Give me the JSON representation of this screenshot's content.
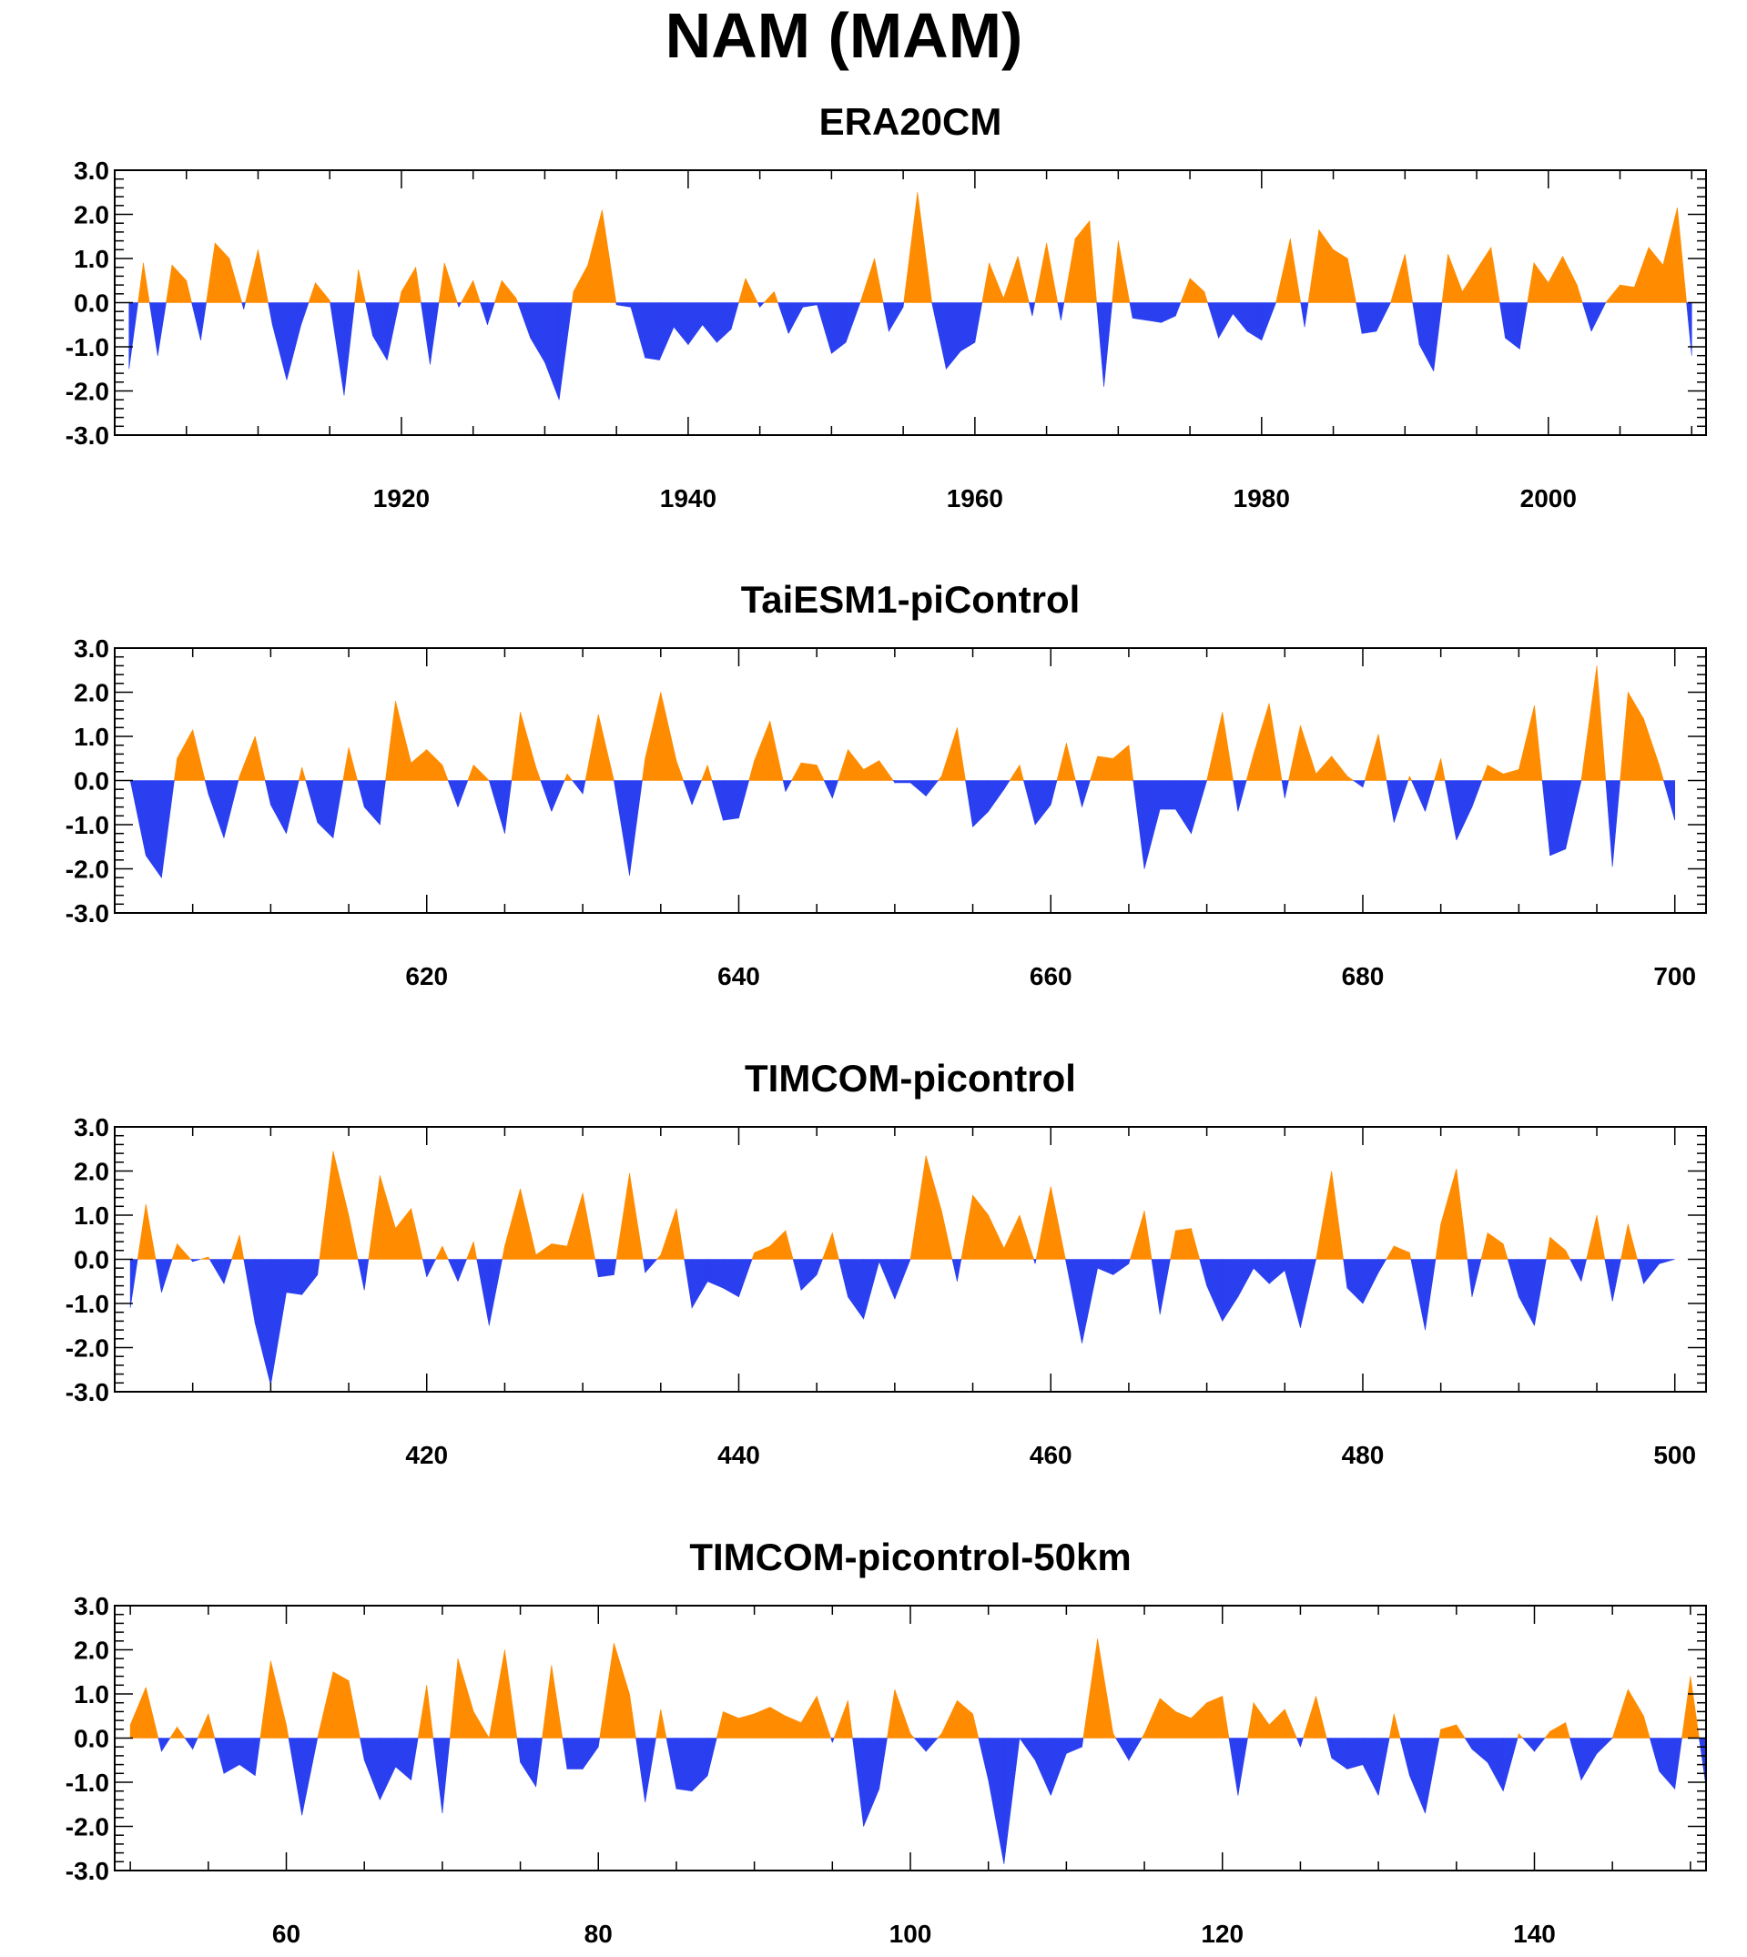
{
  "figure_title": "NAM (MAM)",
  "colors": {
    "positive": "#ff8c00",
    "negative": "#2a3ff0",
    "axis": "#000000"
  },
  "chart_data": [
    {
      "type": "area",
      "title": "ERA20CM",
      "xlabel": "",
      "ylabel": "",
      "ylim": [
        -3.0,
        3.0
      ],
      "yticks": [
        "3.0",
        "2.0",
        "1.0",
        "0.0",
        "-1.0",
        "-2.0",
        "-3.0"
      ],
      "xlim": [
        1900,
        2011
      ],
      "x_start": 1901,
      "xticks": [
        "1920",
        "1940",
        "1960",
        "1980",
        "2000"
      ],
      "series": [
        {
          "values": [
            -1.5,
            0.9,
            -1.2,
            0.85,
            0.5,
            -0.85,
            1.35,
            1.0,
            -0.15,
            1.2,
            -0.5,
            -1.75,
            -0.5,
            0.45,
            0.05,
            -2.1,
            0.75,
            -0.75,
            -1.3,
            0.25,
            0.8,
            -1.4,
            0.9,
            -0.1,
            0.5,
            -0.5,
            0.5,
            0.1,
            -0.8,
            -1.35,
            -2.2,
            0.25,
            0.85,
            2.1,
            -0.05,
            -0.1,
            -1.25,
            -1.3,
            -0.55,
            -0.95,
            -0.5,
            -0.9,
            -0.6,
            0.55,
            -0.1,
            0.25,
            -0.7,
            -0.1,
            -0.05,
            -1.15,
            -0.9,
            0.0,
            1.0,
            -0.65,
            -0.1,
            2.5,
            0.0,
            -1.5,
            -1.1,
            -0.9,
            0.9,
            0.1,
            1.05,
            -0.3,
            1.35,
            -0.4,
            1.45,
            1.85,
            -1.9,
            1.4,
            -0.35,
            -0.4,
            -0.45,
            -0.3,
            0.55,
            0.25,
            -0.8,
            -0.25,
            -0.65,
            -0.85,
            0.0,
            1.45,
            -0.55,
            1.65,
            1.2,
            1.0,
            -0.7,
            -0.65,
            0.0,
            1.1,
            -0.95,
            -1.55,
            1.1,
            0.25,
            0.75,
            1.25,
            -0.8,
            -1.05,
            0.9,
            0.45,
            1.05,
            0.4,
            -0.65,
            0.0,
            0.4,
            0.35,
            1.25,
            0.85,
            2.15,
            -1.2
          ]
        }
      ]
    },
    {
      "type": "area",
      "title": "TaiESM1-piControl",
      "xlabel": "",
      "ylabel": "",
      "ylim": [
        -3.0,
        3.0
      ],
      "yticks": [
        "3.0",
        "2.0",
        "1.0",
        "0.0",
        "-1.0",
        "-2.0",
        "-3.0"
      ],
      "xlim": [
        600,
        702
      ],
      "x_start": 601,
      "xticks": [
        "620",
        "640",
        "660",
        "680",
        "700"
      ],
      "series": [
        {
          "values": [
            0.0,
            -1.7,
            -2.2,
            0.5,
            1.15,
            -0.3,
            -1.3,
            0.1,
            1.0,
            -0.55,
            -1.2,
            0.3,
            -0.95,
            -1.3,
            0.75,
            -0.6,
            -1.0,
            1.8,
            0.4,
            0.7,
            0.35,
            -0.6,
            0.35,
            0.0,
            -1.2,
            1.55,
            0.3,
            -0.7,
            0.15,
            -0.3,
            1.5,
            0.0,
            -2.15,
            0.5,
            2.0,
            0.45,
            -0.55,
            0.35,
            -0.9,
            -0.85,
            0.45,
            1.35,
            -0.25,
            0.4,
            0.35,
            -0.4,
            0.7,
            0.25,
            0.45,
            -0.05,
            -0.05,
            -0.35,
            0.1,
            1.2,
            -1.05,
            -0.7,
            -0.2,
            0.35,
            -1.0,
            -0.55,
            0.85,
            -0.6,
            0.55,
            0.5,
            0.8,
            -2.0,
            -0.65,
            -0.65,
            -1.2,
            0.0,
            1.55,
            -0.7,
            0.6,
            1.75,
            -0.4,
            1.25,
            0.15,
            0.55,
            0.1,
            -0.15,
            1.05,
            -0.95,
            0.1,
            -0.7,
            0.5,
            -1.35,
            -0.6,
            0.35,
            0.15,
            0.25,
            1.7,
            -1.7,
            -1.55,
            0.0,
            2.6,
            -1.95,
            2.0,
            1.4,
            0.35,
            -0.9
          ]
        }
      ]
    },
    {
      "type": "area",
      "title": "TIMCOM-picontrol",
      "xlabel": "",
      "ylabel": "",
      "ylim": [
        -3.0,
        3.0
      ],
      "yticks": [
        "3.0",
        "2.0",
        "1.0",
        "0.0",
        "-1.0",
        "-2.0",
        "-3.0"
      ],
      "xlim": [
        400,
        502
      ],
      "x_start": 401,
      "xticks": [
        "420",
        "440",
        "460",
        "480",
        "500"
      ],
      "series": [
        {
          "values": [
            -1.1,
            1.25,
            -0.75,
            0.35,
            -0.05,
            0.05,
            -0.55,
            0.55,
            -1.45,
            -2.85,
            -0.75,
            -0.8,
            -0.35,
            2.45,
            1.0,
            -0.7,
            1.9,
            0.7,
            1.15,
            -0.4,
            0.3,
            -0.5,
            0.4,
            -1.5,
            0.3,
            1.6,
            0.1,
            0.35,
            0.3,
            1.5,
            -0.4,
            -0.35,
            1.95,
            -0.3,
            0.1,
            1.15,
            -1.1,
            -0.5,
            -0.65,
            -0.85,
            0.15,
            0.3,
            0.65,
            -0.7,
            -0.35,
            0.6,
            -0.85,
            -1.35,
            -0.05,
            -0.9,
            0.0,
            2.35,
            1.1,
            -0.5,
            1.45,
            1.0,
            0.25,
            1.0,
            -0.1,
            1.65,
            -0.1,
            -1.9,
            -0.2,
            -0.35,
            -0.1,
            1.1,
            -1.25,
            0.65,
            0.7,
            -0.6,
            -1.4,
            -0.85,
            -0.2,
            -0.55,
            -0.25,
            -1.55,
            0.0,
            2.0,
            -0.65,
            -1.0,
            -0.3,
            0.3,
            0.15,
            -1.6,
            0.8,
            2.05,
            -0.85,
            0.6,
            0.35,
            -0.85,
            -1.5,
            0.5,
            0.2,
            -0.5,
            1.0,
            -0.95,
            0.8,
            -0.55,
            -0.1,
            0.0
          ]
        }
      ]
    },
    {
      "type": "area",
      "title": "TIMCOM-picontrol-50km",
      "xlabel": "",
      "ylabel": "",
      "ylim": [
        -3.0,
        3.0
      ],
      "yticks": [
        "3.0",
        "2.0",
        "1.0",
        "0.0",
        "-1.0",
        "-2.0",
        "-3.0"
      ],
      "xlim": [
        49,
        151
      ],
      "x_start": 50,
      "xticks": [
        "60",
        "80",
        "100",
        "120",
        "140"
      ],
      "series": [
        {
          "values": [
            0.3,
            1.15,
            -0.3,
            0.25,
            -0.25,
            0.55,
            -0.8,
            -0.6,
            -0.85,
            1.75,
            0.3,
            -1.75,
            0.0,
            1.5,
            1.3,
            -0.5,
            -1.4,
            -0.65,
            -0.95,
            1.2,
            -1.7,
            1.8,
            0.6,
            0.0,
            2.0,
            -0.55,
            -1.1,
            1.65,
            -0.7,
            -0.7,
            -0.2,
            2.15,
            1.0,
            -1.45,
            0.65,
            -1.15,
            -1.2,
            -0.85,
            0.6,
            0.45,
            0.55,
            0.7,
            0.5,
            0.35,
            0.95,
            -0.1,
            0.85,
            -2.0,
            -1.15,
            1.1,
            0.1,
            -0.3,
            0.1,
            0.85,
            0.55,
            -0.95,
            -2.85,
            0.0,
            -0.5,
            -1.3,
            -0.35,
            -0.2,
            2.25,
            0.1,
            -0.5,
            0.1,
            0.9,
            0.6,
            0.45,
            0.8,
            0.95,
            -1.3,
            0.8,
            0.3,
            0.65,
            -0.2,
            0.95,
            -0.45,
            -0.7,
            -0.6,
            -1.3,
            0.55,
            -0.85,
            -1.7,
            0.2,
            0.3,
            -0.25,
            -0.55,
            -1.2,
            0.1,
            -0.3,
            0.15,
            0.35,
            -0.95,
            -0.35,
            0.0,
            1.1,
            0.5,
            -0.75,
            -1.15,
            1.4,
            -1.1
          ]
        }
      ]
    }
  ]
}
